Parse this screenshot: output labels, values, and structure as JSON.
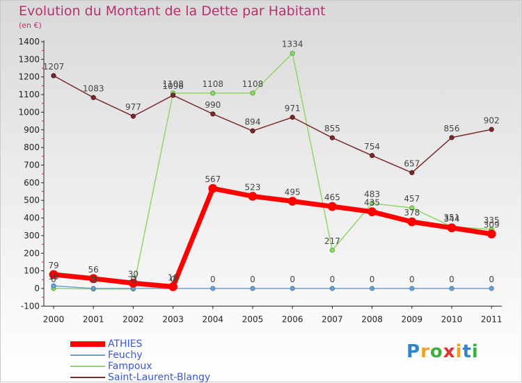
{
  "title": "Evolution du Montant de la Dette par Habitant",
  "subtitle": "(en €)",
  "brand": {
    "letters": [
      "P",
      "r",
      "o",
      "x",
      "i",
      "t",
      "i"
    ],
    "colors": [
      "#2e86c8",
      "#f0a01e",
      "#3fae3f",
      "#e03030",
      "#f0a01e",
      "#2e86c8",
      "#3fae3f"
    ]
  },
  "chart_data": {
    "type": "line",
    "x": [
      "2000",
      "2001",
      "2002",
      "2003",
      "2004",
      "2005",
      "2006",
      "2007",
      "2008",
      "2009",
      "2010",
      "2011"
    ],
    "ylim": [
      -100,
      1400
    ],
    "yticks": [
      "-100",
      "0",
      "100",
      "200",
      "300",
      "400",
      "500",
      "600",
      "700",
      "800",
      "900",
      "1000",
      "1100",
      "1200",
      "1300",
      "1400"
    ],
    "grid": false,
    "legend_position": "bottom-left",
    "series": [
      {
        "name": "ATHIES",
        "color": "#ff0000",
        "values": [
          79,
          56,
          30,
          10,
          567,
          523,
          495,
          465,
          435,
          378,
          344,
          309
        ],
        "labels": [
          "79",
          "56",
          "30",
          "10",
          "567",
          "523",
          "495",
          "465",
          "435",
          "378",
          "344",
          "309"
        ]
      },
      {
        "name": "Feuchy",
        "color": "#6a9fd0",
        "values": [
          15,
          0,
          0,
          0,
          0,
          0,
          0,
          0,
          0,
          0,
          0,
          0
        ],
        "labels": [
          "15",
          "0",
          "0",
          "0",
          "0",
          "0",
          "0",
          "0",
          "0",
          "0",
          "0",
          "0"
        ]
      },
      {
        "name": "Fampoux",
        "color": "#8fd66a",
        "values": [
          0,
          -3,
          -3,
          1108,
          1108,
          1108,
          1334,
          217,
          483,
          457,
          351,
          335
        ],
        "labels": [
          "0",
          "-3",
          "-3",
          "1108",
          "1108",
          "1108",
          "1334",
          "217",
          "483",
          "457",
          "351",
          "335"
        ]
      },
      {
        "name": "Saint-Laurent-Blangy",
        "color": "#7a2a2a",
        "values": [
          1207,
          1083,
          977,
          1096,
          990,
          894,
          971,
          855,
          754,
          657,
          856,
          902
        ],
        "labels": [
          "1207",
          "1083",
          "977",
          "1096",
          "990",
          "894",
          "971",
          "855",
          "754",
          "657",
          "856",
          "902"
        ]
      }
    ]
  }
}
